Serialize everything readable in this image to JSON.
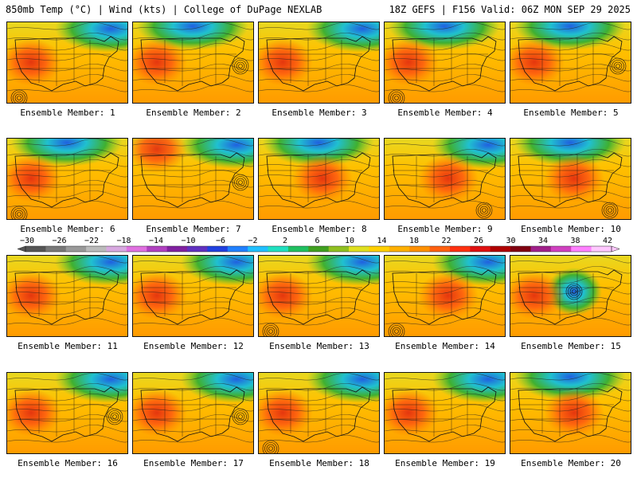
{
  "header": {
    "left": "850mb Temp (°C) | Wind (kts) | College of DuPage NEXLAB",
    "right": "18Z GEFS | F156 Valid: 06Z MON SEP 29 2025"
  },
  "label_prefix": "Ensemble Member: ",
  "members": [
    {
      "id": 1,
      "label": "Ensemble Member: 1",
      "cold": "ne",
      "hot": "w",
      "low": "sw"
    },
    {
      "id": 2,
      "label": "Ensemble Member: 2",
      "cold": "n",
      "hot": "w",
      "low": "e"
    },
    {
      "id": 3,
      "label": "Ensemble Member: 3",
      "cold": "ne",
      "hot": "w",
      "low": "none"
    },
    {
      "id": 4,
      "label": "Ensemble Member: 4",
      "cold": "n",
      "hot": "w",
      "low": "sw"
    },
    {
      "id": 5,
      "label": "Ensemble Member: 5",
      "cold": "n",
      "hot": "w",
      "low": "e"
    },
    {
      "id": 6,
      "label": "Ensemble Member: 6",
      "cold": "n",
      "hot": "w",
      "low": "sw"
    },
    {
      "id": 7,
      "label": "Ensemble Member: 7",
      "cold": "ne",
      "hot": "nw",
      "low": "e"
    },
    {
      "id": 8,
      "label": "Ensemble Member: 8",
      "cold": "n",
      "hot": "c",
      "low": "none"
    },
    {
      "id": 9,
      "label": "Ensemble Member: 9",
      "cold": "ne",
      "hot": "c",
      "low": "se"
    },
    {
      "id": 10,
      "label": "Ensemble Member: 10",
      "cold": "n",
      "hot": "c",
      "low": "se"
    },
    {
      "id": 11,
      "label": "Ensemble Member: 11",
      "cold": "ne",
      "hot": "w",
      "low": "none"
    },
    {
      "id": 12,
      "label": "Ensemble Member: 12",
      "cold": "ne",
      "hot": "w",
      "low": "none"
    },
    {
      "id": 13,
      "label": "Ensemble Member: 13",
      "cold": "ne",
      "hot": "w",
      "low": "sw"
    },
    {
      "id": 14,
      "label": "Ensemble Member: 14",
      "cold": "ne",
      "hot": "c",
      "low": "sw"
    },
    {
      "id": 15,
      "label": "Ensemble Member: 15",
      "cold": "c",
      "hot": "w",
      "low": "c"
    },
    {
      "id": 16,
      "label": "Ensemble Member: 16",
      "cold": "ne",
      "hot": "w",
      "low": "e"
    },
    {
      "id": 17,
      "label": "Ensemble Member: 17",
      "cold": "ne",
      "hot": "w",
      "low": "e"
    },
    {
      "id": 18,
      "label": "Ensemble Member: 18",
      "cold": "ne",
      "hot": "w",
      "low": "sw"
    },
    {
      "id": 19,
      "label": "Ensemble Member: 19",
      "cold": "ne",
      "hot": "w",
      "low": "none"
    },
    {
      "id": 20,
      "label": "Ensemble Member: 20",
      "cold": "n",
      "hot": "c",
      "low": "none"
    }
  ],
  "colorbar": {
    "ticks": [
      "−30",
      "−26",
      "−22",
      "−18",
      "−14",
      "−10",
      "−6",
      "−2",
      "2",
      "6",
      "10",
      "14",
      "18",
      "22",
      "26",
      "30",
      "34",
      "38",
      "42"
    ],
    "colors": [
      "#555555",
      "#777777",
      "#999999",
      "#bbbbbb",
      "#d8a8e0",
      "#e070e0",
      "#b040c0",
      "#8020a0",
      "#6030c0",
      "#2040e0",
      "#2080ff",
      "#20c0ff",
      "#20e0c0",
      "#20c060",
      "#40a020",
      "#90c020",
      "#e0e020",
      "#ffd000",
      "#ffb000",
      "#ff9000",
      "#ff6010",
      "#ff3010",
      "#e01010",
      "#b00000",
      "#800010",
      "#a0208a",
      "#d040c0",
      "#ff80ff",
      "#ffc8ff"
    ]
  }
}
